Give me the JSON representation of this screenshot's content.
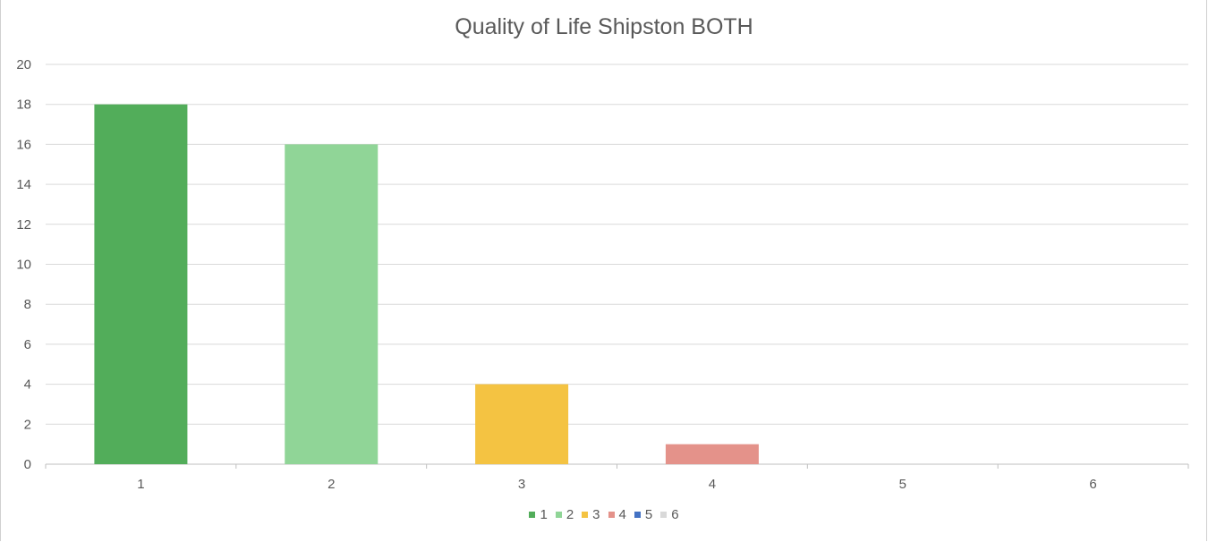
{
  "chart_data": {
    "type": "bar",
    "title": "Quality of Life Shipston BOTH",
    "categories": [
      "1",
      "2",
      "3",
      "4",
      "5",
      "6"
    ],
    "values": [
      18,
      16,
      4,
      1,
      0,
      0
    ],
    "colors": [
      "#52ad5a",
      "#90d597",
      "#f4c342",
      "#e4928a",
      "#4472c4",
      "#d9d9d9"
    ],
    "legend": [
      "1",
      "2",
      "3",
      "4",
      "5",
      "6"
    ],
    "legend_position": "bottom",
    "ylim": [
      0,
      20
    ],
    "yticks": [
      "0",
      "2",
      "4",
      "6",
      "8",
      "10",
      "12",
      "14",
      "16",
      "18",
      "20"
    ],
    "grid": true,
    "xlabel": "",
    "ylabel": ""
  }
}
